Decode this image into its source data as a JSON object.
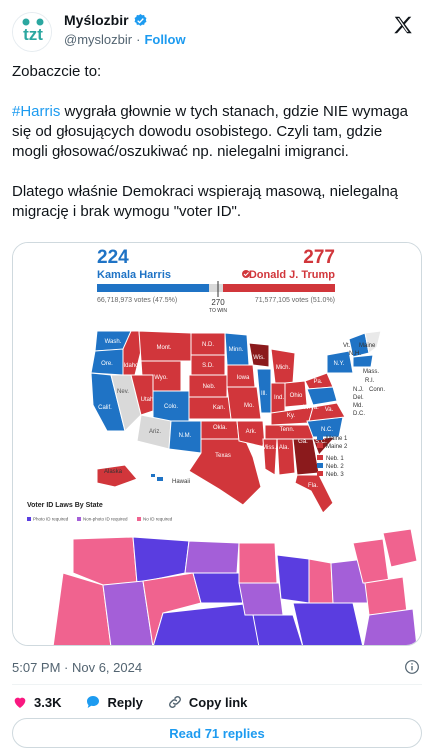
{
  "author": {
    "name": "Myślozbir",
    "handle": "@myslozbir",
    "follow_label": "Follow",
    "avatar_text": "tzt"
  },
  "tweet": {
    "line1": "Zobaczcie to:",
    "hashtag": "#Harris",
    "para2_rest": " wygrała głownie w tych stanach, gdzie NIE wymaga się od głosujących dowodu osobistego. Czyli tam, gdzie mogli głosować/oszukiwać np. nielegalni imigranci.",
    "para3": "Dlatego właśnie Demokraci wspierają masową, nielegalną migrację i brak wymogu \"voter ID\"."
  },
  "media": {
    "harris_votes_ev": "224",
    "harris_name": "Kamala Harris",
    "trump_votes_ev": "277",
    "trump_name": "Donald J. Trump",
    "harris_pop": "66,718,973 votes (47.5%)",
    "trump_pop": "71,577,105 votes (51.0%)",
    "to_win_num": "270",
    "to_win_label": "TO WIN",
    "legend_maine1": "Maine 1",
    "legend_maine2": "Maine 2",
    "legend_neb1": "Neb. 1",
    "legend_neb2": "Neb. 2",
    "legend_neb3": "Neb. 3",
    "map2_title": "Voter ID Laws By State",
    "map2_legend1": "Photo ID required",
    "map2_legend2": "Non-photo ID required",
    "map2_legend3": "No ID required",
    "state_labels": [
      "Wash.",
      "Mont.",
      "N.D.",
      "Minn.",
      "Ore.",
      "Idaho",
      "Wyo.",
      "S.D.",
      "Wis.",
      "Mich.",
      "Nev.",
      "Utah",
      "Colo.",
      "Neb.",
      "Iowa",
      "Ill.",
      "Ind.",
      "Ohio",
      "Pa.",
      "N.Y.",
      "Calif.",
      "Ariz.",
      "N.M.",
      "Kan.",
      "Mo.",
      "Ky.",
      "W.Va.",
      "Va.",
      "Okla.",
      "Ark.",
      "Tenn.",
      "N.C.",
      "Texas",
      "La.",
      "Miss.",
      "Ala.",
      "Ga.",
      "S.C.",
      "Fla.",
      "Alaska",
      "Hawaii",
      "Vt.",
      "Maine",
      "Mass.",
      "R.I.",
      "N.J.",
      "Del.",
      "Md.",
      "D.C.",
      "N.H.",
      "Conn."
    ],
    "colors": {
      "blue": "#1f73c5",
      "red": "#d1363b",
      "darkred": "#8b1a1c",
      "purple1": "#5a3de0",
      "purple2": "#a45fd8",
      "pink": "#f0638f"
    }
  },
  "meta": {
    "timestamp": "5:07 PM · Nov 6, 2024"
  },
  "actions": {
    "likes": "3.3K",
    "reply_label": "Reply",
    "copy_label": "Copy link"
  },
  "replies_label": "Read 71 replies"
}
